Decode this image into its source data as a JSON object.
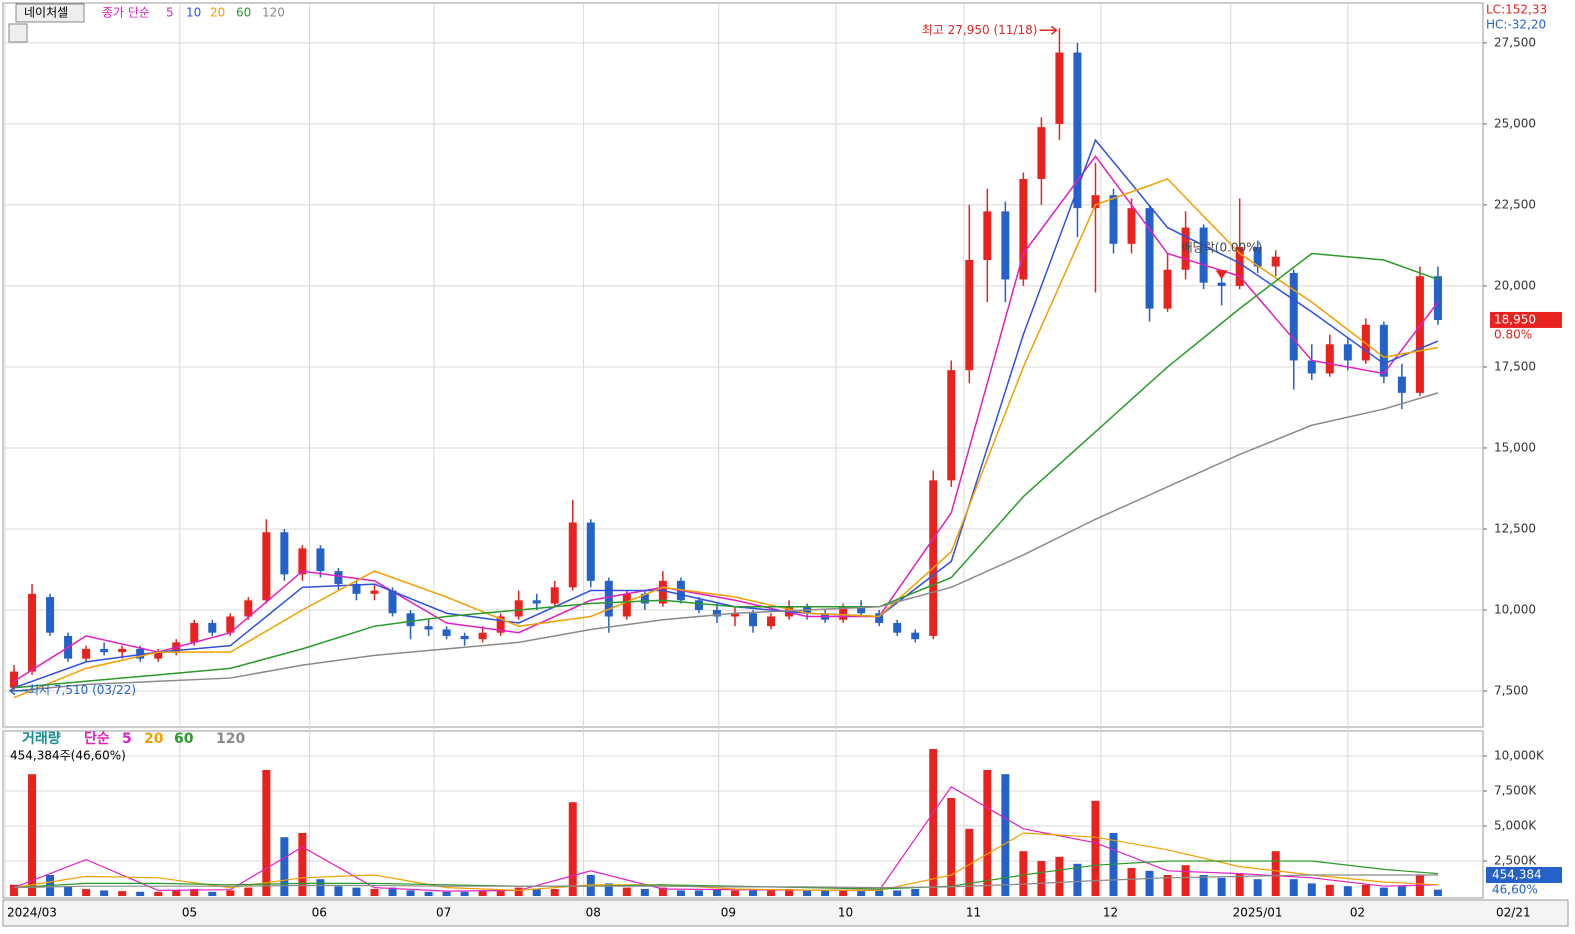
{
  "chart_data": [
    {
      "type": "candlestick",
      "title": "네이처셀",
      "legend_label": "종가 단순",
      "categories": [
        null,
        null,
        null,
        null,
        null,
        null,
        null,
        null,
        null,
        null,
        null,
        null,
        null,
        null,
        null,
        null,
        null,
        null,
        null,
        null,
        null,
        null,
        null,
        null,
        null,
        null,
        null,
        null,
        null,
        null,
        null,
        null,
        null,
        null,
        null,
        null,
        null,
        null,
        null,
        null,
        null,
        null,
        null,
        null,
        null,
        null,
        null,
        null,
        null,
        null,
        null,
        null,
        null,
        null,
        null,
        null,
        null,
        null,
        null,
        null,
        null,
        null,
        null,
        null,
        null,
        null,
        null,
        null,
        null,
        null,
        null,
        null,
        null,
        null,
        null,
        null,
        null,
        null,
        null,
        null
      ],
      "open": [
        7600,
        8100,
        10400,
        9200,
        8500,
        8800,
        8700,
        8800,
        8500,
        8700,
        9000,
        9600,
        9300,
        9800,
        10300,
        12400,
        11100,
        11900,
        11200,
        10800,
        10500,
        10600,
        9900,
        9500,
        9400,
        9200,
        9100,
        9300,
        9800,
        10300,
        10200,
        10700,
        12700,
        10900,
        9800,
        10500,
        10200,
        10900,
        10300,
        10000,
        9800,
        9900,
        9500,
        9800,
        10100,
        9900,
        9700,
        10100,
        9900,
        9600,
        9300,
        9200,
        14000,
        17400,
        20800,
        22300,
        20200,
        23300,
        25000,
        27200,
        22400,
        22800,
        21300,
        22400,
        19300,
        20500,
        21800,
        20100,
        20000,
        21200,
        20600,
        20400,
        17700,
        17300,
        18200,
        17700,
        18800,
        17200,
        16700,
        20300
      ],
      "high": [
        8300,
        10800,
        10500,
        9300,
        8900,
        9000,
        8900,
        8900,
        8800,
        9100,
        9700,
        9700,
        9900,
        10400,
        12800,
        12500,
        12000,
        12000,
        11300,
        10900,
        10800,
        10700,
        10000,
        9700,
        9500,
        9300,
        9500,
        9900,
        10600,
        10500,
        10900,
        13400,
        12800,
        11000,
        10600,
        10600,
        11200,
        11000,
        10400,
        10200,
        10100,
        10000,
        9900,
        10300,
        10200,
        10000,
        10200,
        10300,
        10000,
        9700,
        9400,
        14300,
        17700,
        22500,
        23000,
        22600,
        23500,
        25200,
        27950,
        27500,
        23800,
        23000,
        22700,
        22500,
        21000,
        22300,
        21900,
        20500,
        22700,
        21400,
        21100,
        20500,
        18200,
        18500,
        18400,
        19000,
        18900,
        17600,
        20600,
        20600
      ],
      "low": [
        7510,
        8000,
        9200,
        8400,
        8400,
        8600,
        8500,
        8400,
        8400,
        8600,
        8900,
        9200,
        9200,
        9700,
        10200,
        10900,
        10900,
        11000,
        10600,
        10300,
        10300,
        9800,
        9100,
        9200,
        9100,
        8900,
        9000,
        9200,
        9700,
        10000,
        10100,
        10600,
        10700,
        9300,
        9700,
        10000,
        10100,
        10200,
        9900,
        9600,
        9500,
        9300,
        9400,
        9700,
        9700,
        9600,
        9600,
        9800,
        9500,
        9200,
        9000,
        9100,
        13800,
        17000,
        19500,
        19500,
        20000,
        22500,
        24500,
        21500,
        19800,
        21000,
        21000,
        18900,
        19200,
        20200,
        19900,
        19400,
        19900,
        20400,
        20300,
        16800,
        17100,
        17200,
        17400,
        17600,
        17000,
        16200,
        16600,
        18800
      ],
      "close": [
        8100,
        10500,
        9300,
        8500,
        8800,
        8700,
        8800,
        8500,
        8700,
        9000,
        9600,
        9300,
        9800,
        10300,
        12400,
        11100,
        11900,
        11200,
        10800,
        10500,
        10600,
        9900,
        9500,
        9400,
        9200,
        9100,
        9300,
        9800,
        10300,
        10200,
        10700,
        12700,
        10900,
        9800,
        10500,
        10200,
        10900,
        10300,
        10000,
        9800,
        9900,
        9500,
        9800,
        10100,
        9900,
        9700,
        10100,
        9900,
        9600,
        9300,
        9100,
        14000,
        17400,
        20800,
        22300,
        20200,
        23300,
        24900,
        27200,
        22400,
        22800,
        21300,
        22400,
        19300,
        20500,
        21800,
        20100,
        20000,
        21200,
        20600,
        20900,
        17700,
        17300,
        18200,
        17700,
        18800,
        17200,
        16700,
        20300,
        18950
      ],
      "up_color": "#e8231f",
      "down_color": "#2461c9",
      "series": [
        {
          "name": "5",
          "color": "#e020c0",
          "x": [
            0,
            4,
            8,
            12,
            16,
            20,
            24,
            28,
            32,
            36,
            40,
            44,
            48,
            52,
            56,
            60,
            64,
            68,
            72,
            76,
            79
          ],
          "values": [
            7800,
            9200,
            8700,
            9300,
            11200,
            10900,
            9600,
            9300,
            10300,
            10700,
            10300,
            9800,
            9800,
            13000,
            21000,
            24000,
            21000,
            20300,
            17700,
            17300,
            19500
          ]
        },
        {
          "name": "10",
          "color": "#3050e0",
          "x": [
            0,
            4,
            8,
            12,
            16,
            20,
            24,
            28,
            32,
            36,
            40,
            44,
            48,
            52,
            56,
            60,
            64,
            68,
            72,
            76,
            79
          ],
          "values": [
            7600,
            8400,
            8700,
            8900,
            10700,
            10800,
            9900,
            9600,
            10600,
            10600,
            10100,
            9900,
            9800,
            11500,
            18500,
            24500,
            21800,
            20700,
            19200,
            17600,
            18300
          ]
        },
        {
          "name": "20",
          "color": "#f0a000",
          "x": [
            0,
            4,
            8,
            12,
            16,
            20,
            24,
            28,
            32,
            36,
            40,
            44,
            48,
            52,
            56,
            60,
            64,
            68,
            72,
            76,
            79
          ],
          "values": [
            7300,
            8200,
            8700,
            8700,
            10000,
            11200,
            10400,
            9500,
            9800,
            10700,
            10400,
            9900,
            9800,
            11800,
            17500,
            22500,
            23300,
            21000,
            19500,
            17800,
            18100
          ]
        },
        {
          "name": "60",
          "color": "#2a9a2a",
          "x": [
            0,
            4,
            8,
            12,
            16,
            20,
            24,
            28,
            32,
            36,
            40,
            44,
            48,
            52,
            56,
            60,
            64,
            68,
            72,
            76,
            79
          ],
          "values": [
            7600,
            7800,
            8000,
            8200,
            8800,
            9500,
            9800,
            10000,
            10200,
            10300,
            10100,
            10100,
            10100,
            11000,
            13500,
            15500,
            17500,
            19300,
            21000,
            20800,
            20200
          ]
        },
        {
          "name": "120",
          "color": "#8a8a8a",
          "x": [
            0,
            4,
            8,
            12,
            16,
            20,
            24,
            28,
            32,
            36,
            40,
            44,
            48,
            52,
            56,
            60,
            64,
            68,
            72,
            76,
            79
          ],
          "values": [
            7500,
            7700,
            7800,
            7900,
            8300,
            8600,
            8800,
            9000,
            9400,
            9700,
            9900,
            10000,
            10100,
            10700,
            11700,
            12800,
            13800,
            14800,
            15700,
            16200,
            16700
          ]
        }
      ],
      "xlim": [
        -0.5,
        81.5
      ],
      "xticks": [
        {
          "value": -0.5,
          "label": "2024/03"
        },
        {
          "value": 9.2,
          "label": "05"
        },
        {
          "value": 16.4,
          "label": "06"
        },
        {
          "value": 23.3,
          "label": "07"
        },
        {
          "value": 31.6,
          "label": "08"
        },
        {
          "value": 39.1,
          "label": "09"
        },
        {
          "value": 45.6,
          "label": "10"
        },
        {
          "value": 52.7,
          "label": "11"
        },
        {
          "value": 60.3,
          "label": "12"
        },
        {
          "value": 67.5,
          "label": "2025/01"
        },
        {
          "value": 74.0,
          "label": "02"
        }
      ],
      "last_date_label": "02/21",
      "ylim": [
        6390,
        28730
      ],
      "yticks": [
        {
          "value": 7500,
          "label": "7,500"
        },
        {
          "value": 10000,
          "label": "10,000"
        },
        {
          "value": 12500,
          "label": "12,500"
        },
        {
          "value": 15000,
          "label": "15,000"
        },
        {
          "value": 17500,
          "label": "17,500"
        },
        {
          "value": 20000,
          "label": "20,000"
        },
        {
          "value": 22500,
          "label": "22,500"
        },
        {
          "value": 25000,
          "label": "25,000"
        },
        {
          "value": 27500,
          "label": "27,500"
        }
      ],
      "last_price": {
        "value": 18950,
        "label": "18,950"
      },
      "change_label": "0.80%",
      "lc_label": "LC:152,33",
      "hc_label": "HC:-32,20",
      "annotations": [
        {
          "text": "최고 27,950 (11/18)",
          "index": 58,
          "value": 27950
        },
        {
          "text": "최저 7,510 (03/22)",
          "index": 0,
          "value": 7510
        },
        {
          "text": "배당락(0.00%)",
          "index": 67,
          "value": 20300
        }
      ]
    },
    {
      "type": "bar",
      "title": "거래량",
      "legend_label": "단순",
      "subtitle": "454,384주(46,60%)",
      "values": [
        800,
        8700,
        1500,
        700,
        500,
        400,
        350,
        300,
        300,
        400,
        500,
        300,
        400,
        600,
        9000,
        4200,
        4500,
        1200,
        700,
        600,
        500,
        600,
        400,
        300,
        300,
        300,
        350,
        400,
        600,
        500,
        500,
        6700,
        1500,
        900,
        600,
        500,
        600,
        400,
        400,
        500,
        400,
        400,
        400,
        500,
        400,
        400,
        400,
        350,
        400,
        400,
        500,
        10500,
        7000,
        4800,
        9000,
        8700,
        3200,
        2500,
        2800,
        2300,
        6800,
        4500,
        2000,
        1800,
        1500,
        2200,
        1500,
        1300,
        1600,
        1200,
        3200,
        1200,
        900,
        800,
        700,
        800,
        600,
        700,
        1500,
        454.384
      ],
      "series": [
        {
          "name": "5",
          "color": "#e020c0",
          "x": [
            0,
            4,
            8,
            12,
            16,
            20,
            24,
            28,
            32,
            36,
            40,
            44,
            48,
            52,
            56,
            60,
            64,
            68,
            72,
            76,
            79
          ],
          "values": [
            600,
            2600,
            400,
            450,
            3500,
            600,
            350,
            400,
            1800,
            500,
            450,
            420,
            400,
            7800,
            4800,
            3800,
            1800,
            1600,
            1300,
            700,
            800
          ]
        },
        {
          "name": "20",
          "color": "#f0a000",
          "x": [
            0,
            4,
            8,
            12,
            16,
            20,
            24,
            28,
            32,
            36,
            40,
            44,
            48,
            52,
            56,
            60,
            64,
            68,
            72,
            76,
            79
          ],
          "values": [
            600,
            1400,
            1300,
            600,
            1300,
            1500,
            600,
            400,
            800,
            800,
            500,
            420,
            400,
            1500,
            4500,
            4200,
            3300,
            2100,
            1500,
            1000,
            800
          ]
        },
        {
          "name": "60",
          "color": "#2a9a2a",
          "x": [
            0,
            4,
            8,
            12,
            16,
            20,
            24,
            28,
            32,
            36,
            40,
            44,
            48,
            52,
            56,
            60,
            64,
            68,
            72,
            76,
            79
          ],
          "values": [
            600,
            900,
            900,
            800,
            900,
            900,
            800,
            700,
            700,
            800,
            700,
            600,
            500,
            700,
            1500,
            2200,
            2500,
            2500,
            2500,
            1900,
            1600
          ]
        },
        {
          "name": "120",
          "color": "#8a8a8a",
          "x": [
            0,
            4,
            8,
            12,
            16,
            20,
            24,
            28,
            32,
            36,
            40,
            44,
            48,
            52,
            56,
            60,
            64,
            68,
            72,
            76,
            79
          ],
          "values": [
            600,
            700,
            700,
            700,
            750,
            750,
            700,
            700,
            700,
            700,
            650,
            650,
            600,
            650,
            850,
            1100,
            1300,
            1400,
            1500,
            1500,
            1500
          ]
        }
      ],
      "ylim": [
        -143,
        11786
      ],
      "yticks": [
        {
          "value": 2500,
          "label": "2,500K"
        },
        {
          "value": 5000,
          "label": "5,000K"
        },
        {
          "value": 7500,
          "label": "7,500K"
        },
        {
          "value": 10000,
          "label": "10,000K"
        }
      ],
      "last_volume_label": "454,384",
      "ratio_label": "46,60%"
    }
  ]
}
